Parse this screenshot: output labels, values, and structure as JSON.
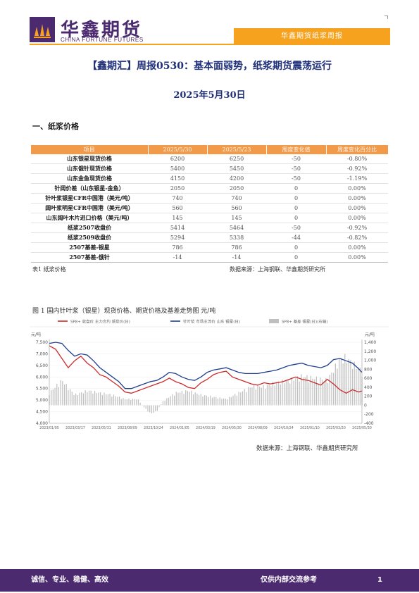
{
  "header": {
    "logo_cn": "华鑫期货",
    "logo_en": "CHINA FORTUNE FUTURES",
    "tag": "华鑫期货纸浆周报",
    "brand_color": "#4b2a6f",
    "accent_color": "#f6a21e"
  },
  "report": {
    "title": "【鑫期汇】周报0530：基本面弱势，纸浆期货震荡运行",
    "date": "2025年5月30日"
  },
  "section": {
    "heading": "一、纸浆价格"
  },
  "table": {
    "columns": [
      "项目",
      "2025/5/30",
      "2025/5/23",
      "周度变化值",
      "周度变化百分比"
    ],
    "rows": [
      [
        "山东银星现货价格",
        "6200",
        "6250",
        "-50",
        "-0.80%"
      ],
      [
        "山东俄针现货价格",
        "5400",
        "5450",
        "-50",
        "-0.92%"
      ],
      [
        "山东金鱼现货价格",
        "4150",
        "4200",
        "-50",
        "-1.19%"
      ],
      [
        "针阔价差（山东银星-金鱼）",
        "2050",
        "2050",
        "0",
        "0.00%"
      ],
      [
        "针叶浆银星CFR中国港（美元/吨）",
        "740",
        "740",
        "0",
        "0.00%"
      ],
      [
        "阔叶浆明星CFR中国港（美元/吨）",
        "560",
        "560",
        "0",
        "0.00%"
      ],
      [
        "山东阔叶木片进口价格（美元/吨）",
        "145",
        "145",
        "0",
        "0.00%"
      ],
      [
        "纸浆2507收盘价",
        "5414",
        "5464",
        "-50",
        "-0.92%"
      ],
      [
        "纸浆2509收盘价",
        "5294",
        "5338",
        "-44",
        "-0.82%"
      ],
      [
        "2507基差-银星",
        "786",
        "786",
        "0",
        "0.00%"
      ],
      [
        "2507基差-俄针",
        "-14",
        "-14",
        "0",
        "0.00%"
      ]
    ],
    "caption": "表1 纸浆价格",
    "source": "数据来源：上海钢联、华鑫期货研究所"
  },
  "figure": {
    "title": "图 1 国内针叶浆（银星）现货价格、期货价格及基差走势图 元/吨",
    "source": "数据来源：上海钢联、华鑫期货研究所"
  },
  "chart_data": {
    "type": "line",
    "left_unit": "元/吨",
    "right_unit": "元/吨",
    "series": [
      {
        "name": "SP8+ 收盘价 主力合约 纸浆价(日)",
        "axis": "left",
        "color": "#cc2a2a",
        "values": [
          [
            0,
            7350
          ],
          [
            2,
            7200
          ],
          [
            4,
            6800
          ],
          [
            6,
            6400
          ],
          [
            8,
            6700
          ],
          [
            10,
            6900
          ],
          [
            12,
            6600
          ],
          [
            14,
            6400
          ],
          [
            16,
            6100
          ],
          [
            18,
            6000
          ],
          [
            20,
            5800
          ],
          [
            22,
            5600
          ],
          [
            24,
            5350
          ],
          [
            26,
            5300
          ],
          [
            28,
            5400
          ],
          [
            30,
            5500
          ],
          [
            32,
            5600
          ],
          [
            34,
            5700
          ],
          [
            36,
            5800
          ],
          [
            38,
            5950
          ],
          [
            40,
            5800
          ],
          [
            42,
            5700
          ],
          [
            44,
            5550
          ],
          [
            46,
            5500
          ],
          [
            48,
            5750
          ],
          [
            50,
            5900
          ],
          [
            52,
            6100
          ],
          [
            54,
            6200
          ],
          [
            56,
            6250
          ],
          [
            58,
            6000
          ],
          [
            60,
            5900
          ],
          [
            62,
            5800
          ],
          [
            64,
            5700
          ],
          [
            66,
            5650
          ],
          [
            68,
            5750
          ],
          [
            70,
            5700
          ],
          [
            72,
            5750
          ],
          [
            74,
            5800
          ],
          [
            76,
            5900
          ],
          [
            78,
            6000
          ],
          [
            80,
            5900
          ],
          [
            82,
            5850
          ],
          [
            84,
            5750
          ],
          [
            86,
            5650
          ],
          [
            88,
            5900
          ],
          [
            90,
            5700
          ],
          [
            92,
            5450
          ],
          [
            94,
            5300
          ],
          [
            96,
            5450
          ],
          [
            98,
            5350
          ],
          [
            99,
            5400
          ]
        ]
      },
      {
        "name": "针叶浆 市场主流价 山东 银星(日)",
        "axis": "left",
        "color": "#1f3f8f",
        "values": [
          [
            0,
            7450
          ],
          [
            2,
            7500
          ],
          [
            4,
            7450
          ],
          [
            6,
            7150
          ],
          [
            8,
            6900
          ],
          [
            10,
            7000
          ],
          [
            12,
            6950
          ],
          [
            14,
            6700
          ],
          [
            16,
            6400
          ],
          [
            18,
            6200
          ],
          [
            20,
            6000
          ],
          [
            22,
            5800
          ],
          [
            24,
            5500
          ],
          [
            26,
            5500
          ],
          [
            28,
            5600
          ],
          [
            30,
            5700
          ],
          [
            32,
            5800
          ],
          [
            34,
            5850
          ],
          [
            36,
            6000
          ],
          [
            38,
            6200
          ],
          [
            40,
            6150
          ],
          [
            42,
            6000
          ],
          [
            44,
            5900
          ],
          [
            46,
            5850
          ],
          [
            48,
            6000
          ],
          [
            50,
            6200
          ],
          [
            52,
            6300
          ],
          [
            54,
            6350
          ],
          [
            56,
            6400
          ],
          [
            58,
            6300
          ],
          [
            60,
            6200
          ],
          [
            62,
            6150
          ],
          [
            64,
            6150
          ],
          [
            66,
            6150
          ],
          [
            68,
            6200
          ],
          [
            70,
            6250
          ],
          [
            72,
            6300
          ],
          [
            74,
            6400
          ],
          [
            76,
            6500
          ],
          [
            78,
            6550
          ],
          [
            80,
            6600
          ],
          [
            82,
            6500
          ],
          [
            84,
            6450
          ],
          [
            86,
            6400
          ],
          [
            88,
            6500
          ],
          [
            90,
            6750
          ],
          [
            92,
            6800
          ],
          [
            94,
            6700
          ],
          [
            96,
            6600
          ],
          [
            98,
            6350
          ],
          [
            99,
            6200
          ]
        ]
      },
      {
        "name": "SP8+ 基差 银星(日)(右轴)",
        "axis": "right",
        "color": "#bfbfbf",
        "values": [
          [
            0,
            300
          ],
          [
            4,
            600
          ],
          [
            8,
            250
          ],
          [
            12,
            350
          ],
          [
            16,
            300
          ],
          [
            20,
            250
          ],
          [
            24,
            150
          ],
          [
            28,
            150
          ],
          [
            30,
            -50
          ],
          [
            32,
            -200
          ],
          [
            34,
            -150
          ],
          [
            36,
            100
          ],
          [
            40,
            300
          ],
          [
            44,
            350
          ],
          [
            48,
            250
          ],
          [
            52,
            200
          ],
          [
            56,
            150
          ],
          [
            60,
            300
          ],
          [
            64,
            450
          ],
          [
            68,
            450
          ],
          [
            72,
            550
          ],
          [
            76,
            600
          ],
          [
            80,
            700
          ],
          [
            84,
            650
          ],
          [
            88,
            600
          ],
          [
            92,
            1100
          ],
          [
            94,
            1150
          ],
          [
            96,
            1000
          ],
          [
            98,
            900
          ],
          [
            99,
            800
          ]
        ]
      }
    ],
    "left_ylim": [
      4000,
      7500
    ],
    "left_ticks": [
      "7,500",
      "7,000",
      "6,500",
      "6,000",
      "5,500",
      "5,000",
      "4,500",
      "4,000"
    ],
    "right_ylim": [
      -400,
      1400
    ],
    "right_ticks": [
      "1,400",
      "1,200",
      "1,000",
      "800",
      "600",
      "400",
      "200",
      "0",
      "-200",
      "-400"
    ],
    "x_ticks": [
      "2023/01/05",
      "2023/03/17",
      "2023/05/31",
      "2023/08/09",
      "2023/10/24",
      "2024/01/05",
      "2024/03/19",
      "2024/05/30",
      "2024/08/09",
      "2024/10/24",
      "2025/01/10",
      "2025/03/20",
      "2025/05/30"
    ],
    "grid": true,
    "legend_placement": "top"
  },
  "footer": {
    "motto": "诚信、专业、稳健、高效",
    "notice": "仅供内部交流参考",
    "page": "1"
  }
}
